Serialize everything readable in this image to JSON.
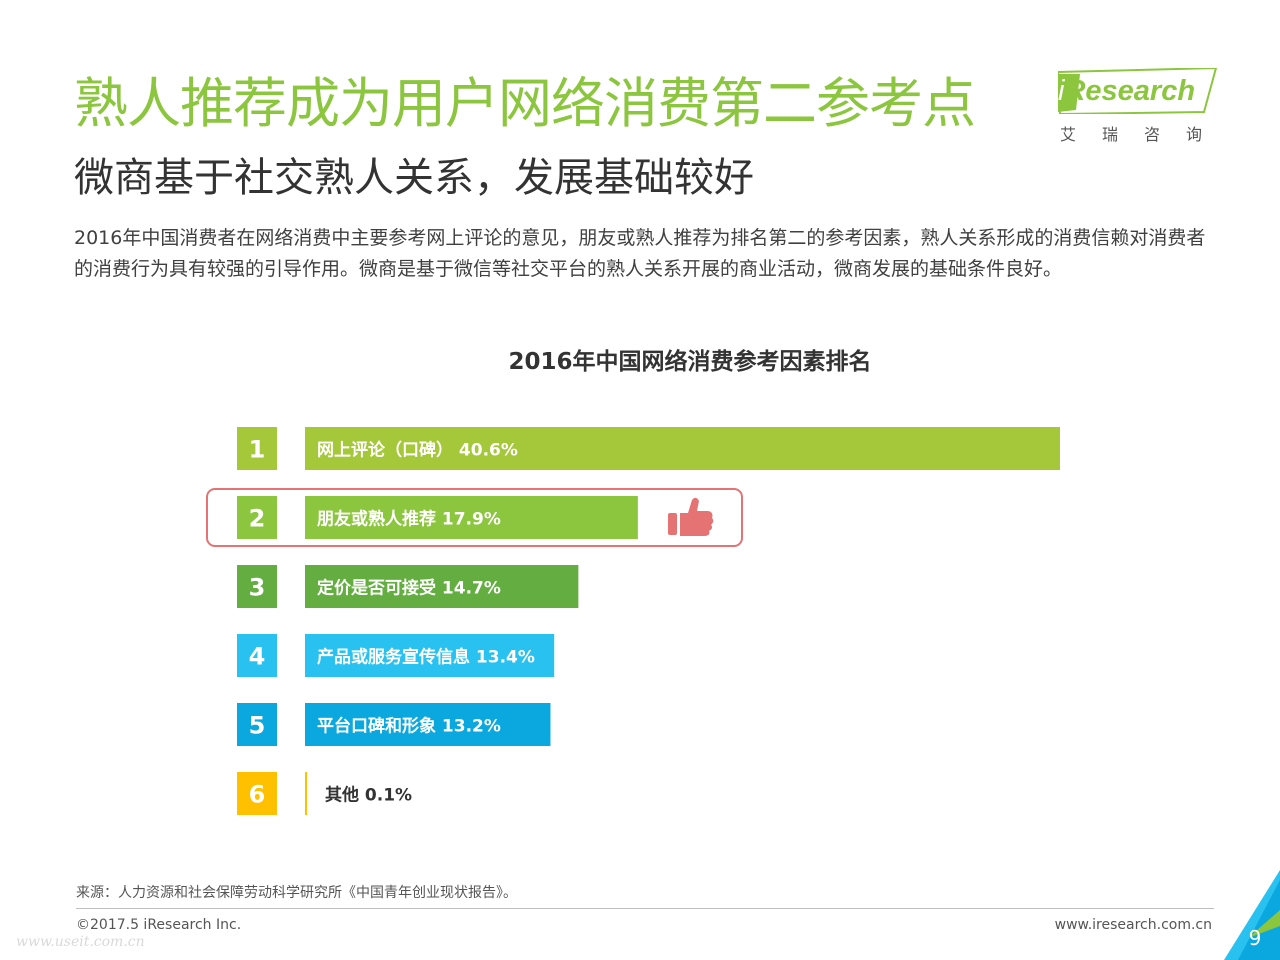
{
  "header": {
    "title": "熟人推荐成为用户网络消费第二参考点",
    "subtitle": "微商基于社交熟人关系，发展基础较好",
    "description": "2016年中国消费者在网络消费中主要参考网上评论的意见，朋友或熟人推荐为排名第二的参考因素，熟人关系形成的消费信赖对消费者的消费行为具有较强的引导作用。微商是基于微信等社交平台的熟人关系开展的商业活动，微商发展的基础条件良好。"
  },
  "logo": {
    "brand_i": "i",
    "brand_rest": "Research",
    "chinese": "艾瑞咨询"
  },
  "chart_data": {
    "type": "bar",
    "orientation": "horizontal",
    "title": "2016年中国网络消费参考因素排名",
    "ranks": [
      "1",
      "2",
      "3",
      "4",
      "5",
      "6"
    ],
    "categories": [
      "网上评论（口碑）",
      "朋友或熟人推荐",
      "定价是否可接受",
      "产品或服务宣传信息",
      "平台口碑和形象",
      "其他"
    ],
    "values": [
      40.6,
      17.9,
      14.7,
      13.4,
      13.2,
      0.1
    ],
    "value_labels": [
      "40.6%",
      "17.9%",
      "14.7%",
      "13.4%",
      "13.2%",
      "0.1%"
    ],
    "colors": [
      "#a4c83a",
      "#8cc63f",
      "#63ad41",
      "#29c1ef",
      "#0aa8de",
      "#ffc000"
    ],
    "highlight_index": 1,
    "highlight_icon": "thumbs-up-icon",
    "highlight_color": "#e57373",
    "xlim": [
      0,
      40.6
    ],
    "grid": false,
    "legend": "none"
  },
  "footer": {
    "source": "来源：人力资源和社会保障劳动科学研究所《中国青年创业现状报告》。",
    "copyright": "©2017.5 iResearch Inc.",
    "website": "www.iresearch.com.cn",
    "watermark": "www.useit.com.cn",
    "page_number": "9"
  }
}
